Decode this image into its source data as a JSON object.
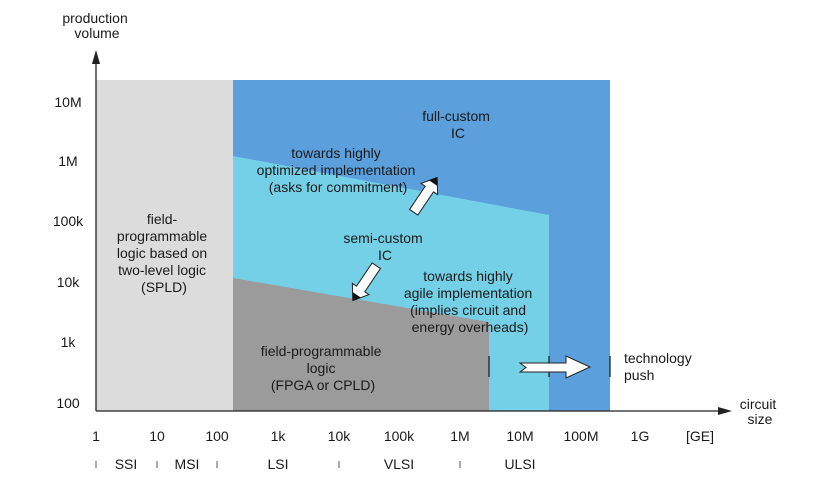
{
  "axes": {
    "y_title": [
      "production",
      "volume"
    ],
    "x_title": [
      "circuit",
      "size"
    ],
    "y_ticks": [
      "10M",
      "1M",
      "100k",
      "10k",
      "1k",
      "100"
    ],
    "x_ticks": [
      "1",
      "10",
      "100",
      "1k",
      "10k",
      "100k",
      "1M",
      "10M",
      "100M",
      "1G",
      "[GE]"
    ]
  },
  "integration_levels": [
    "SSI",
    "MSI",
    "LSI",
    "VLSI",
    "ULSI"
  ],
  "regions": {
    "spld": [
      "field-",
      "programmable",
      "logic based on",
      "two-level logic",
      "(SPLD)"
    ],
    "full_custom": [
      "full-custom",
      "IC"
    ],
    "semi_custom": [
      "semi-custom",
      "IC"
    ],
    "fpga": [
      "field-programmable",
      "logic",
      "(FPGA or CPLD)"
    ]
  },
  "annotations": {
    "towards_optimized": [
      "towards highly",
      "optimized implementation",
      "(asks for commitment)"
    ],
    "towards_agile": [
      "towards highly",
      "agile implementation",
      "(implies circuit and",
      "energy overheads)"
    ],
    "technology_push": [
      "technology",
      "push"
    ]
  },
  "colors": {
    "spld": "#dcdcdc",
    "full_custom": "#5b9fdc",
    "semi_custom": "#74d0e6",
    "fpga": "#9b9b9b"
  }
}
